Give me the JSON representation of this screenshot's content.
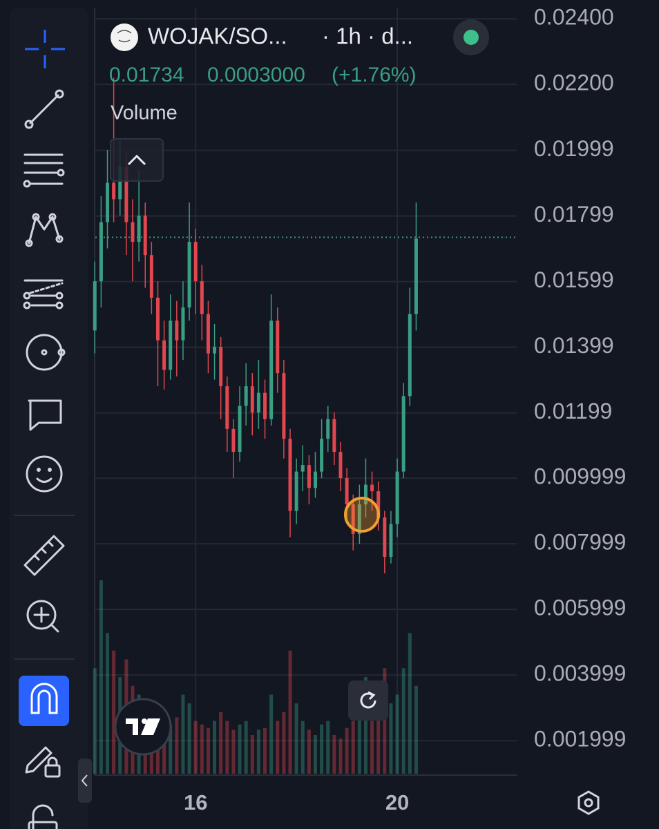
{
  "chart_data": {
    "type": "candlestick",
    "symbol": "WOJAK/SO...",
    "interval": "· 1h · d...",
    "last_price": 0.01734,
    "change": "0.0003000",
    "change_pct": "(+1.76%)",
    "volume_label": "Volume",
    "up_color": "#3a9e83",
    "down_color": "#e0474e",
    "grid": true,
    "x": [
      14,
      14.125,
      14.25,
      14.375,
      14.5,
      14.625,
      14.75,
      14.875,
      15,
      15.125,
      15.25,
      15.375,
      15.5,
      15.625,
      15.75,
      15.875,
      16,
      16.125,
      16.25,
      16.375,
      16.5,
      16.625,
      16.75,
      16.875,
      17,
      17.125,
      17.25,
      17.375,
      17.5,
      17.625,
      17.75,
      17.875,
      18,
      18.125,
      18.25,
      18.375,
      18.5,
      18.625,
      18.75,
      18.875,
      19,
      19.125,
      19.25,
      19.375,
      19.5,
      19.625,
      19.75,
      19.875,
      20,
      20.125,
      20.25,
      20.375
    ],
    "open": [
      0.0145,
      0.016,
      0.0178,
      0.019,
      0.0185,
      0.0195,
      0.0178,
      0.0172,
      0.018,
      0.0168,
      0.0155,
      0.0142,
      0.0133,
      0.0148,
      0.0142,
      0.0152,
      0.0172,
      0.016,
      0.015,
      0.0138,
      0.014,
      0.0128,
      0.0115,
      0.0108,
      0.0122,
      0.0128,
      0.012,
      0.0126,
      0.0118,
      0.0148,
      0.0132,
      0.0112,
      0.009,
      0.0102,
      0.0104,
      0.0097,
      0.0102,
      0.0112,
      0.0118,
      0.0108,
      0.01,
      0.0092,
      0.0083,
      0.0092,
      0.0098,
      0.0096,
      0.0088,
      0.0076,
      0.0086,
      0.0102,
      0.0125,
      0.015
    ],
    "high": [
      0.0166,
      0.0186,
      0.02,
      0.0222,
      0.0203,
      0.0199,
      0.0185,
      0.0194,
      0.0184,
      0.0172,
      0.016,
      0.0148,
      0.0156,
      0.0154,
      0.016,
      0.0184,
      0.0176,
      0.0165,
      0.0154,
      0.0147,
      0.0143,
      0.0131,
      0.0118,
      0.0128,
      0.0135,
      0.0132,
      0.0136,
      0.013,
      0.0156,
      0.0152,
      0.0136,
      0.0115,
      0.0106,
      0.011,
      0.0107,
      0.0108,
      0.0118,
      0.0122,
      0.012,
      0.0111,
      0.0103,
      0.0095,
      0.0098,
      0.0106,
      0.0102,
      0.0099,
      0.009,
      0.009,
      0.0106,
      0.0129,
      0.0158,
      0.0184
    ],
    "low": [
      0.0138,
      0.0152,
      0.017,
      0.0178,
      0.018,
      0.0168,
      0.016,
      0.0166,
      0.0158,
      0.015,
      0.0128,
      0.0127,
      0.013,
      0.0131,
      0.0136,
      0.0148,
      0.015,
      0.0142,
      0.0132,
      0.013,
      0.0118,
      0.0108,
      0.01,
      0.0105,
      0.0116,
      0.0113,
      0.0115,
      0.0112,
      0.0116,
      0.0126,
      0.0106,
      0.0082,
      0.0086,
      0.0096,
      0.0092,
      0.0094,
      0.01,
      0.0108,
      0.0104,
      0.0096,
      0.0087,
      0.0078,
      0.008,
      0.0088,
      0.009,
      0.0084,
      0.0071,
      0.0074,
      0.0082,
      0.01,
      0.0122,
      0.0145
    ],
    "close": [
      0.016,
      0.0178,
      0.019,
      0.0185,
      0.0195,
      0.0178,
      0.0172,
      0.018,
      0.0168,
      0.0155,
      0.0142,
      0.0133,
      0.0148,
      0.0142,
      0.0152,
      0.0172,
      0.016,
      0.015,
      0.0138,
      0.014,
      0.0128,
      0.0115,
      0.0108,
      0.0122,
      0.0128,
      0.012,
      0.0126,
      0.0118,
      0.0148,
      0.0132,
      0.0112,
      0.009,
      0.0102,
      0.0104,
      0.0097,
      0.0102,
      0.0112,
      0.0118,
      0.0108,
      0.01,
      0.0092,
      0.0083,
      0.0092,
      0.0098,
      0.0096,
      0.0088,
      0.0076,
      0.0086,
      0.0102,
      0.0125,
      0.015,
      0.0173
    ],
    "volume": [
      60,
      110,
      80,
      70,
      55,
      65,
      50,
      45,
      40,
      35,
      38,
      30,
      28,
      32,
      45,
      40,
      30,
      28,
      26,
      30,
      35,
      30,
      25,
      28,
      30,
      22,
      25,
      26,
      45,
      30,
      35,
      70,
      40,
      30,
      25,
      22,
      28,
      30,
      22,
      20,
      26,
      30,
      35,
      55,
      30,
      32,
      60,
      40,
      45,
      60,
      80,
      50
    ],
    "xlim": [
      14.01,
      22.37
    ],
    "xticks": [
      16,
      20
    ],
    "ylim": [
      0.00099,
      0.02432
    ],
    "yticks": [
      {
        "value": 0.024,
        "label": "0.02400"
      },
      {
        "value": 0.022,
        "label": "0.02200"
      },
      0.01999,
      0.01799,
      0.01599,
      0.01399,
      0.01199,
      0.009999,
      0.007999,
      0.005999,
      0.003999,
      0.001999
    ]
  }
}
